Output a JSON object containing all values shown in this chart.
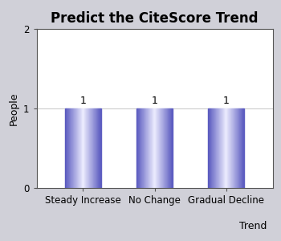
{
  "title": "Predict the CiteScore Trend",
  "categories": [
    "Steady Increase",
    "No Change",
    "Gradual Decline"
  ],
  "values": [
    1,
    1,
    1
  ],
  "ylabel": "People",
  "xlabel": "Trend",
  "ylim": [
    0,
    2
  ],
  "yticks": [
    0,
    1,
    2
  ],
  "background_color": "#d0d0d8",
  "plot_bg_color": "#ffffff",
  "label_fontsize": 8.5,
  "title_fontsize": 12,
  "axis_label_fontsize": 9,
  "annotation_fontsize": 9,
  "gridline_color": "#cccccc",
  "bar_edge_color": "#3333aa",
  "bar_center_color": "#eeeeff",
  "bar_width": 0.5
}
